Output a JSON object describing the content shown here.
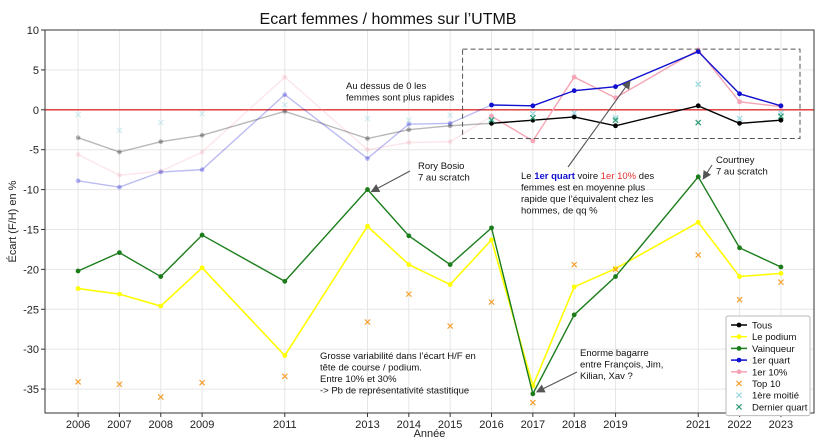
{
  "chart_data": {
    "type": "line",
    "title": "Ecart femmes / hommes sur l’UTMB",
    "xlabel": "Année",
    "ylabel": "Écart (F/H) en %",
    "ylim": [
      -38,
      10
    ],
    "yticks": [
      10,
      5,
      0,
      -5,
      -10,
      -15,
      -20,
      -25,
      -30,
      -35
    ],
    "x": [
      2006,
      2007,
      2008,
      2009,
      2011,
      2013,
      2014,
      2015,
      2016,
      2017,
      2018,
      2019,
      2021,
      2022,
      2023
    ],
    "grid": true,
    "legend_position": "bottom-right",
    "reference_line": {
      "y": 0,
      "color": "#e03030"
    },
    "series": [
      {
        "name": "Tous",
        "kind": "line",
        "color": "#000000",
        "values": [
          -3.5,
          -5.3,
          -4.0,
          -3.2,
          -0.2,
          -3.6,
          -2.5,
          -2.0,
          -1.7,
          -1.3,
          -0.9,
          -2.0,
          0.5,
          -1.7,
          -1.3
        ],
        "faded_before": 2016
      },
      {
        "name": "Le podium",
        "kind": "line",
        "color": "#ffff00",
        "values": [
          -22.4,
          -23.1,
          -24.6,
          -19.8,
          -30.8,
          -14.6,
          -19.4,
          -21.9,
          -16.3,
          -34.6,
          -22.2,
          -19.9,
          -14.1,
          -20.9,
          -20.5
        ]
      },
      {
        "name": "Vainqueur",
        "kind": "line",
        "color": "#1a7d1a",
        "values": [
          -20.2,
          -17.9,
          -20.9,
          -15.7,
          -21.5,
          -10.0,
          -15.8,
          -19.4,
          -14.8,
          -35.6,
          -25.7,
          -20.9,
          -8.4,
          -17.3,
          -19.7
        ]
      },
      {
        "name": "1er quart",
        "kind": "line",
        "color": "#1010d0",
        "values": [
          -8.9,
          -9.7,
          -7.8,
          -7.5,
          1.9,
          -6.1,
          -1.8,
          -1.7,
          0.6,
          0.5,
          2.4,
          2.9,
          7.3,
          2.0,
          0.5
        ],
        "faded_before": 2016
      },
      {
        "name": "1er 10%",
        "kind": "line",
        "color": "#f5a5b5",
        "values": [
          -5.6,
          -8.2,
          -7.7,
          -5.3,
          4.1,
          -5.0,
          -4.1,
          -4.0,
          -0.8,
          -3.9,
          4.1,
          1.5,
          7.5,
          1.0,
          0.4
        ],
        "faded_before": 2016
      },
      {
        "name": "Top 10",
        "kind": "marker",
        "color": "#f5a030",
        "values": [
          -34.1,
          -34.4,
          -36.0,
          -34.2,
          -33.4,
          -26.6,
          -23.1,
          -27.1,
          -24.1,
          -36.7,
          -19.4,
          -20.0,
          -18.2,
          -23.8,
          -21.6
        ]
      },
      {
        "name": "1ère moitié",
        "kind": "marker",
        "color": "#9ad8e0",
        "values": [
          -0.6,
          -2.6,
          -1.6,
          -0.5,
          0.6,
          -1.1,
          -1.3,
          -0.7,
          -1.2,
          -0.5,
          -0.4,
          -1.0,
          3.2,
          -1.1,
          -0.4
        ],
        "faded_before": 2016
      },
      {
        "name": "Dernier quart",
        "kind": "marker",
        "color": "#2a9a70",
        "values": [
          null,
          null,
          null,
          null,
          null,
          null,
          null,
          null,
          -1.3,
          -1.0,
          null,
          -1.3,
          -1.6,
          null,
          -0.8
        ]
      }
    ],
    "annotations": [
      {
        "lines": [
          "Au dessus de 0 les",
          "femmes sont plus rapides"
        ]
      },
      {
        "lines": [
          "Rory Bosio",
          "7 au scratch"
        ]
      },
      {
        "lines": [
          "Courtney",
          "7 au scratch"
        ]
      },
      {
        "lines": [
          "Grosse variabilité dans l’écart H/F en",
          "tête de course / podium.",
          "Entre 10% et 30%",
          "-> Pb de représentativité stastitique"
        ]
      },
      {
        "lines": [
          "Enorme bagarre",
          "entre François, Jim,",
          "Kilian, Xav ?"
        ]
      },
      {
        "rich": [
          [
            {
              "t": "Le ",
              "c": "#111111",
              "b": false
            },
            {
              "t": "1er quart",
              "c": "#1010d0",
              "b": true
            },
            {
              "t": " voire ",
              "c": "#111111",
              "b": false
            },
            {
              "t": "1er 10%",
              "c": "#e03030",
              "b": false
            },
            {
              "t": " des",
              "c": "#111111",
              "b": false
            }
          ],
          [
            {
              "t": "femmes est en moyenne plus",
              "c": "#111111",
              "b": false
            }
          ],
          [
            {
              "t": "rapide que l’équivalent chez les",
              "c": "#111111",
              "b": false
            }
          ],
          [
            {
              "t": "hommes, de qq %",
              "c": "#111111",
              "b": false
            }
          ]
        ]
      }
    ]
  }
}
